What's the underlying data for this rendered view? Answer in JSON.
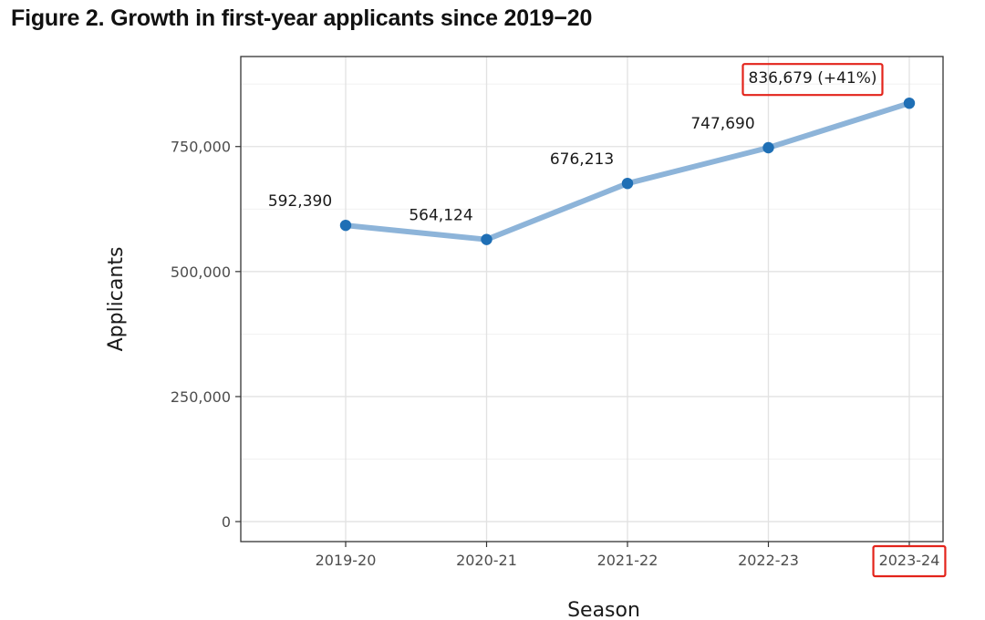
{
  "title": "Figure 2. Growth in first-year applicants since 2019−20",
  "chart_data": {
    "type": "line",
    "categories": [
      "2019-20",
      "2020-21",
      "2021-22",
      "2022-23",
      "2023-24"
    ],
    "values": [
      592390,
      564124,
      676213,
      747690,
      836679
    ],
    "data_labels": [
      "592,390",
      "564,124",
      "676,213",
      "747,690",
      "836,679 (+41%)"
    ],
    "xlabel": "Season",
    "ylabel": "Applicants",
    "ylim": [
      -40000,
      930000
    ],
    "yticks": [
      0,
      250000,
      500000,
      750000
    ],
    "ytick_labels": [
      "0",
      "250,000",
      "500,000",
      "750,000"
    ],
    "grid": true,
    "line_color": "#8db4d9",
    "point_color": "#1f6fb5",
    "highlight_color": "#e3241b",
    "highlighted": [
      "data-label-2023-24",
      "x-tick-2023-24"
    ]
  }
}
